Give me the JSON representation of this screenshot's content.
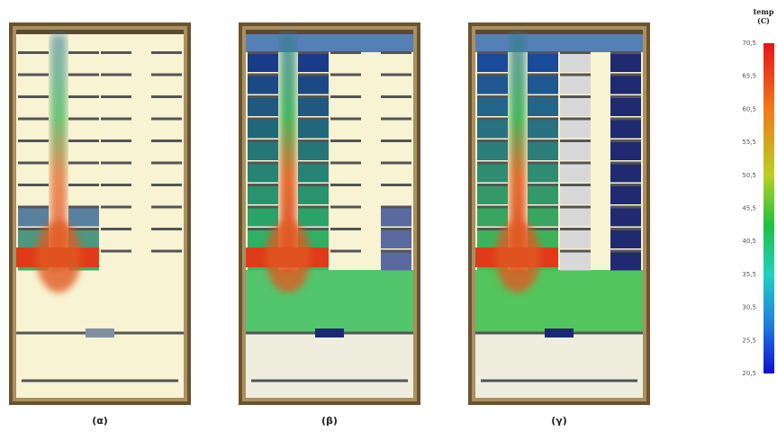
{
  "panels": [
    {
      "label": "(α)"
    },
    {
      "label": "(β)"
    },
    {
      "label": "(γ)"
    }
  ],
  "colorbar": {
    "title": "temp",
    "unit": "(C)",
    "ticks": [
      "70,5",
      "65,5",
      "60,5",
      "55,5",
      "50,5",
      "45,5",
      "40,5",
      "35,5",
      "30,5",
      "25,5",
      "20,5"
    ]
  }
}
